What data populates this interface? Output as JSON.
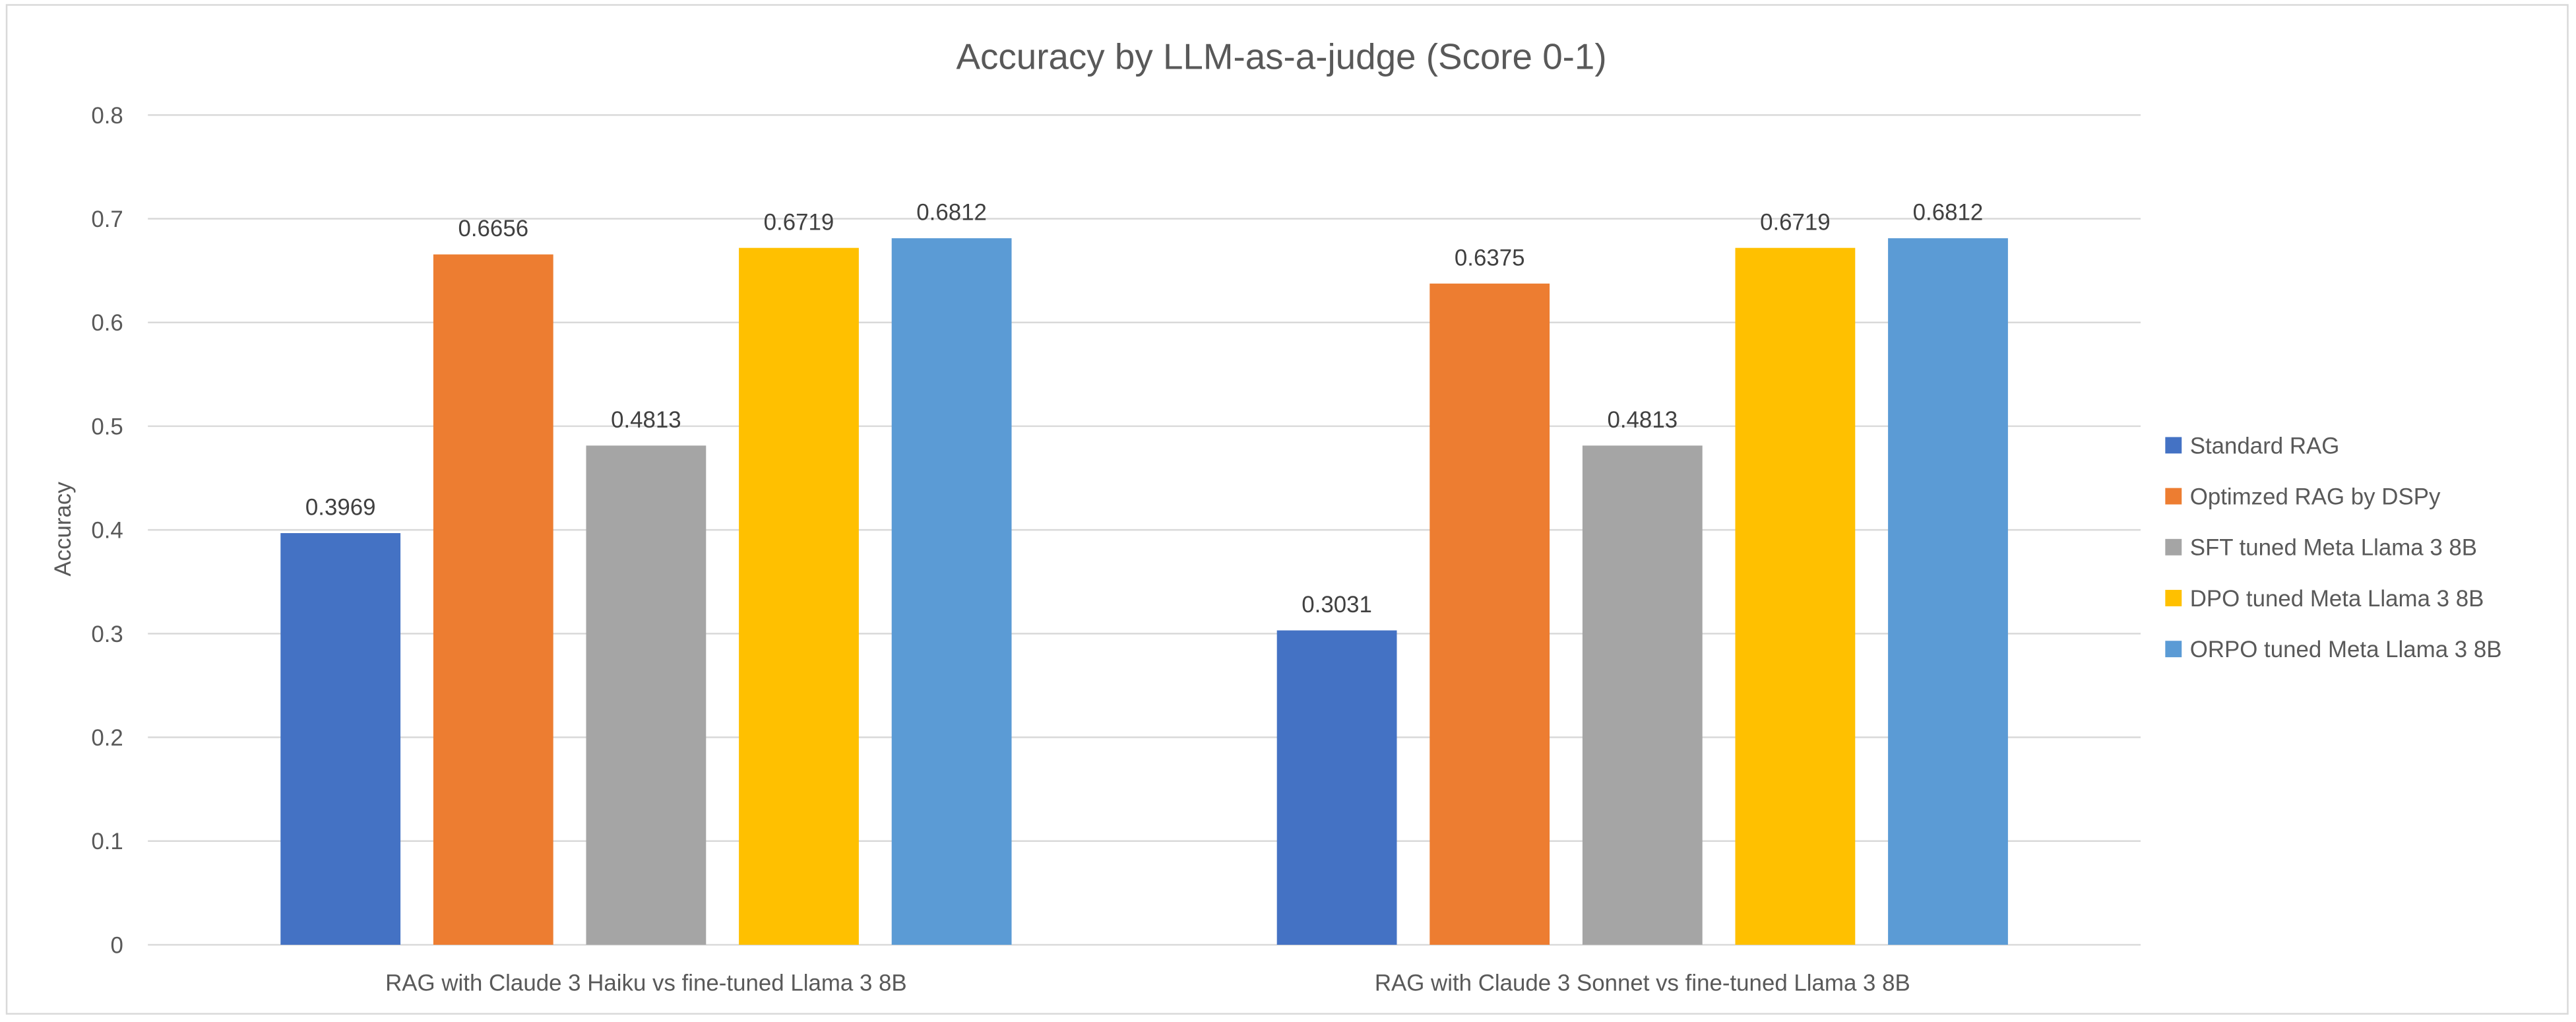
{
  "chart_data": {
    "type": "bar",
    "title": "Accuracy by LLM-as-a-judge (Score 0-1)",
    "xlabel": "",
    "ylabel": "Accuracy",
    "ylim": [
      0,
      0.8
    ],
    "yticks": [
      "0",
      "0.1",
      "0.2",
      "0.3",
      "0.4",
      "0.5",
      "0.6",
      "0.7",
      "0.8"
    ],
    "grid": true,
    "legend_position": "right",
    "categories": [
      "RAG with Claude 3 Haiku vs fine-tuned Llama 3 8B",
      "RAG with Claude 3 Sonnet vs fine-tuned Llama 3 8B"
    ],
    "series": [
      {
        "name": "Standard RAG",
        "color": "#4472C4",
        "values": [
          0.3969,
          0.3031
        ],
        "labels": [
          "0.3969",
          "0.3031"
        ]
      },
      {
        "name": "Optimzed RAG  by DSPy",
        "color": "#ED7D31",
        "values": [
          0.6656,
          0.6375
        ],
        "labels": [
          "0.6656",
          "0.6375"
        ]
      },
      {
        "name": "SFT tuned Meta Llama 3 8B",
        "color": "#A5A5A5",
        "values": [
          0.4813,
          0.4813
        ],
        "labels": [
          "0.4813",
          "0.4813"
        ]
      },
      {
        "name": "DPO tuned Meta Llama 3 8B",
        "color": "#FFC000",
        "values": [
          0.6719,
          0.6719
        ],
        "labels": [
          "0.6719",
          "0.6719"
        ]
      },
      {
        "name": "ORPO tuned Meta Llama 3 8B",
        "color": "#5B9BD5",
        "values": [
          0.6812,
          0.6812
        ],
        "labels": [
          "0.6812",
          "0.6812"
        ]
      }
    ]
  }
}
